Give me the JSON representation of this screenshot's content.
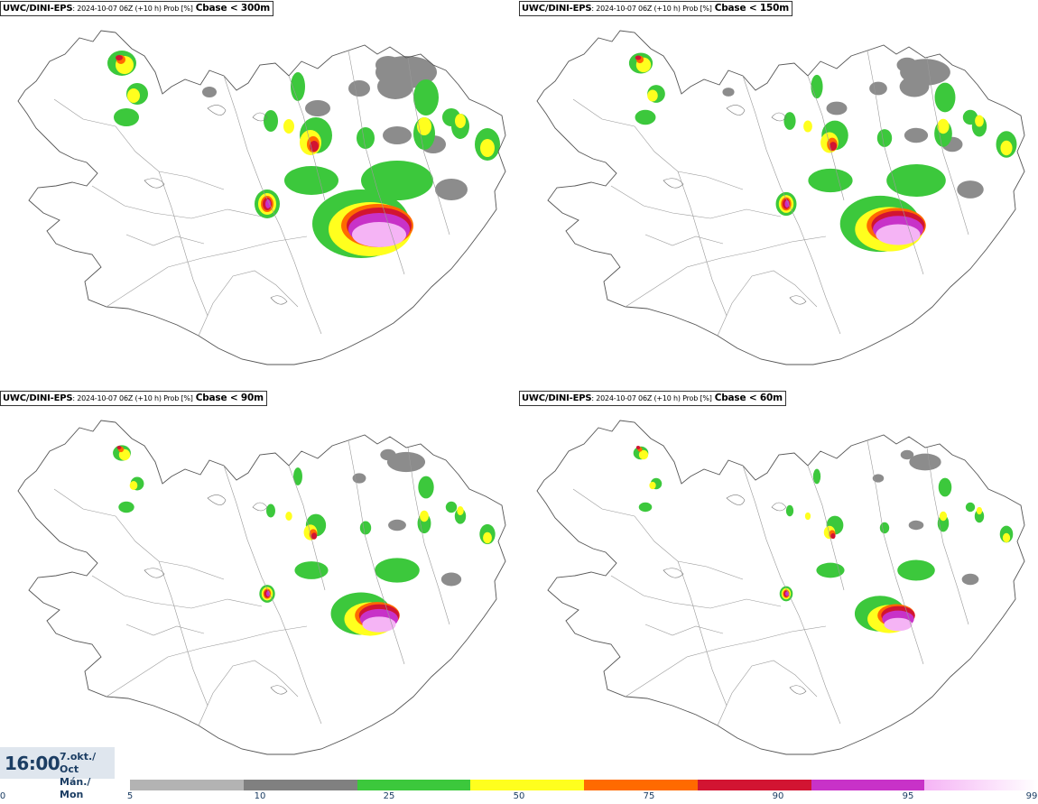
{
  "panels": [
    {
      "source": "UWC/DINI-EPS",
      "meta": ": 2024-10-07 06Z (+10 h) Prob [%]",
      "parameter": "Cbase < 300m",
      "level": 4
    },
    {
      "source": "UWC/DINI-EPS",
      "meta": ": 2024-10-07 06Z (+10 h) Prob [%]",
      "parameter": "Cbase < 150m",
      "level": 3
    },
    {
      "source": "UWC/DINI-EPS",
      "meta": ": 2024-10-07 06Z (+10 h) Prob [%]",
      "parameter": "Cbase < 90m",
      "level": 2
    },
    {
      "source": "UWC/DINI-EPS",
      "meta": ": 2024-10-07 06Z (+10 h) Prob [%]",
      "parameter": "Cbase < 60m",
      "level": 1
    }
  ],
  "time": {
    "clock": "16:00",
    "date_line1": "7.okt./ Oct",
    "date_line2": "Mán./ Mon"
  },
  "legend": {
    "ticks": [
      "0",
      "5",
      "10",
      "25",
      "50",
      "75",
      "90",
      "95",
      "99"
    ],
    "colors": [
      "#b3b3b3",
      "#808080",
      "#3cc83c",
      "#ffff1e",
      "#ff6a00",
      "#d21432",
      "#c832c8",
      "#f5b4f5"
    ]
  }
}
